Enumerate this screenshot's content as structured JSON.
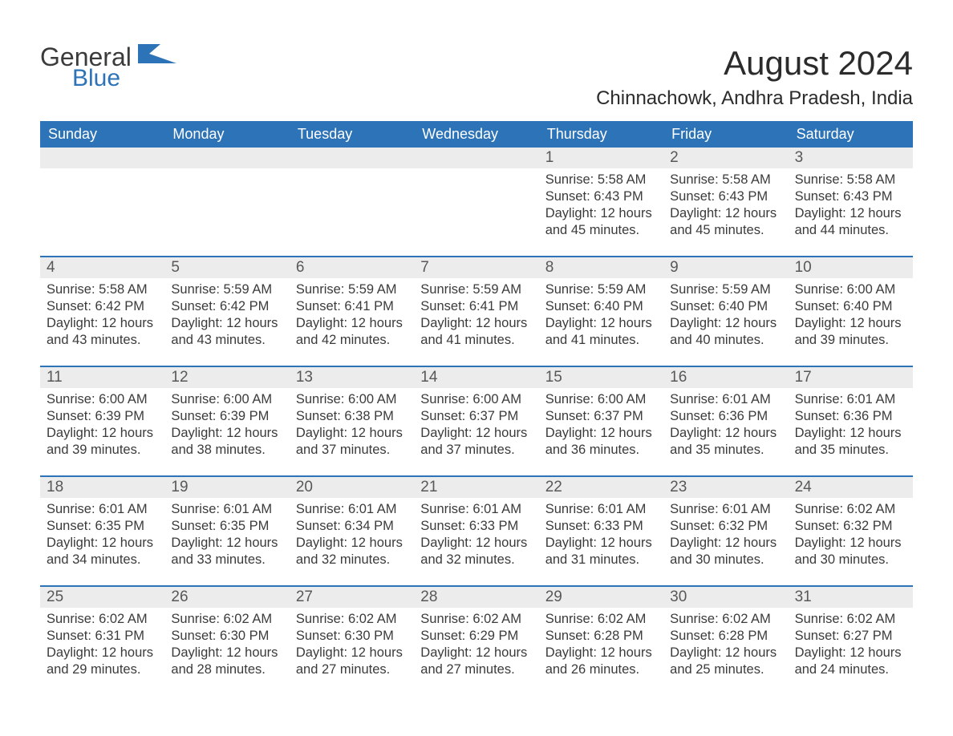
{
  "brand": {
    "word1": "General",
    "word2": "Blue"
  },
  "title": "August 2024",
  "location": "Chinnachowk, Andhra Pradesh, India",
  "colors": {
    "brand_blue": "#2d73b7",
    "header_bg": "#2d73b7",
    "row_separator": "#2d73b7",
    "daynum_bg": "#ececec",
    "text": "#3b3b3b",
    "bg": "#ffffff"
  },
  "dow": [
    "Sunday",
    "Monday",
    "Tuesday",
    "Wednesday",
    "Thursday",
    "Friday",
    "Saturday"
  ],
  "weeks": [
    [
      null,
      null,
      null,
      null,
      {
        "n": "1",
        "sunrise": "Sunrise: 5:58 AM",
        "sunset": "Sunset: 6:43 PM",
        "d1": "Daylight: 12 hours",
        "d2": "and 45 minutes."
      },
      {
        "n": "2",
        "sunrise": "Sunrise: 5:58 AM",
        "sunset": "Sunset: 6:43 PM",
        "d1": "Daylight: 12 hours",
        "d2": "and 45 minutes."
      },
      {
        "n": "3",
        "sunrise": "Sunrise: 5:58 AM",
        "sunset": "Sunset: 6:43 PM",
        "d1": "Daylight: 12 hours",
        "d2": "and 44 minutes."
      }
    ],
    [
      {
        "n": "4",
        "sunrise": "Sunrise: 5:58 AM",
        "sunset": "Sunset: 6:42 PM",
        "d1": "Daylight: 12 hours",
        "d2": "and 43 minutes."
      },
      {
        "n": "5",
        "sunrise": "Sunrise: 5:59 AM",
        "sunset": "Sunset: 6:42 PM",
        "d1": "Daylight: 12 hours",
        "d2": "and 43 minutes."
      },
      {
        "n": "6",
        "sunrise": "Sunrise: 5:59 AM",
        "sunset": "Sunset: 6:41 PM",
        "d1": "Daylight: 12 hours",
        "d2": "and 42 minutes."
      },
      {
        "n": "7",
        "sunrise": "Sunrise: 5:59 AM",
        "sunset": "Sunset: 6:41 PM",
        "d1": "Daylight: 12 hours",
        "d2": "and 41 minutes."
      },
      {
        "n": "8",
        "sunrise": "Sunrise: 5:59 AM",
        "sunset": "Sunset: 6:40 PM",
        "d1": "Daylight: 12 hours",
        "d2": "and 41 minutes."
      },
      {
        "n": "9",
        "sunrise": "Sunrise: 5:59 AM",
        "sunset": "Sunset: 6:40 PM",
        "d1": "Daylight: 12 hours",
        "d2": "and 40 minutes."
      },
      {
        "n": "10",
        "sunrise": "Sunrise: 6:00 AM",
        "sunset": "Sunset: 6:40 PM",
        "d1": "Daylight: 12 hours",
        "d2": "and 39 minutes."
      }
    ],
    [
      {
        "n": "11",
        "sunrise": "Sunrise: 6:00 AM",
        "sunset": "Sunset: 6:39 PM",
        "d1": "Daylight: 12 hours",
        "d2": "and 39 minutes."
      },
      {
        "n": "12",
        "sunrise": "Sunrise: 6:00 AM",
        "sunset": "Sunset: 6:39 PM",
        "d1": "Daylight: 12 hours",
        "d2": "and 38 minutes."
      },
      {
        "n": "13",
        "sunrise": "Sunrise: 6:00 AM",
        "sunset": "Sunset: 6:38 PM",
        "d1": "Daylight: 12 hours",
        "d2": "and 37 minutes."
      },
      {
        "n": "14",
        "sunrise": "Sunrise: 6:00 AM",
        "sunset": "Sunset: 6:37 PM",
        "d1": "Daylight: 12 hours",
        "d2": "and 37 minutes."
      },
      {
        "n": "15",
        "sunrise": "Sunrise: 6:00 AM",
        "sunset": "Sunset: 6:37 PM",
        "d1": "Daylight: 12 hours",
        "d2": "and 36 minutes."
      },
      {
        "n": "16",
        "sunrise": "Sunrise: 6:01 AM",
        "sunset": "Sunset: 6:36 PM",
        "d1": "Daylight: 12 hours",
        "d2": "and 35 minutes."
      },
      {
        "n": "17",
        "sunrise": "Sunrise: 6:01 AM",
        "sunset": "Sunset: 6:36 PM",
        "d1": "Daylight: 12 hours",
        "d2": "and 35 minutes."
      }
    ],
    [
      {
        "n": "18",
        "sunrise": "Sunrise: 6:01 AM",
        "sunset": "Sunset: 6:35 PM",
        "d1": "Daylight: 12 hours",
        "d2": "and 34 minutes."
      },
      {
        "n": "19",
        "sunrise": "Sunrise: 6:01 AM",
        "sunset": "Sunset: 6:35 PM",
        "d1": "Daylight: 12 hours",
        "d2": "and 33 minutes."
      },
      {
        "n": "20",
        "sunrise": "Sunrise: 6:01 AM",
        "sunset": "Sunset: 6:34 PM",
        "d1": "Daylight: 12 hours",
        "d2": "and 32 minutes."
      },
      {
        "n": "21",
        "sunrise": "Sunrise: 6:01 AM",
        "sunset": "Sunset: 6:33 PM",
        "d1": "Daylight: 12 hours",
        "d2": "and 32 minutes."
      },
      {
        "n": "22",
        "sunrise": "Sunrise: 6:01 AM",
        "sunset": "Sunset: 6:33 PM",
        "d1": "Daylight: 12 hours",
        "d2": "and 31 minutes."
      },
      {
        "n": "23",
        "sunrise": "Sunrise: 6:01 AM",
        "sunset": "Sunset: 6:32 PM",
        "d1": "Daylight: 12 hours",
        "d2": "and 30 minutes."
      },
      {
        "n": "24",
        "sunrise": "Sunrise: 6:02 AM",
        "sunset": "Sunset: 6:32 PM",
        "d1": "Daylight: 12 hours",
        "d2": "and 30 minutes."
      }
    ],
    [
      {
        "n": "25",
        "sunrise": "Sunrise: 6:02 AM",
        "sunset": "Sunset: 6:31 PM",
        "d1": "Daylight: 12 hours",
        "d2": "and 29 minutes."
      },
      {
        "n": "26",
        "sunrise": "Sunrise: 6:02 AM",
        "sunset": "Sunset: 6:30 PM",
        "d1": "Daylight: 12 hours",
        "d2": "and 28 minutes."
      },
      {
        "n": "27",
        "sunrise": "Sunrise: 6:02 AM",
        "sunset": "Sunset: 6:30 PM",
        "d1": "Daylight: 12 hours",
        "d2": "and 27 minutes."
      },
      {
        "n": "28",
        "sunrise": "Sunrise: 6:02 AM",
        "sunset": "Sunset: 6:29 PM",
        "d1": "Daylight: 12 hours",
        "d2": "and 27 minutes."
      },
      {
        "n": "29",
        "sunrise": "Sunrise: 6:02 AM",
        "sunset": "Sunset: 6:28 PM",
        "d1": "Daylight: 12 hours",
        "d2": "and 26 minutes."
      },
      {
        "n": "30",
        "sunrise": "Sunrise: 6:02 AM",
        "sunset": "Sunset: 6:28 PM",
        "d1": "Daylight: 12 hours",
        "d2": "and 25 minutes."
      },
      {
        "n": "31",
        "sunrise": "Sunrise: 6:02 AM",
        "sunset": "Sunset: 6:27 PM",
        "d1": "Daylight: 12 hours",
        "d2": "and 24 minutes."
      }
    ]
  ]
}
